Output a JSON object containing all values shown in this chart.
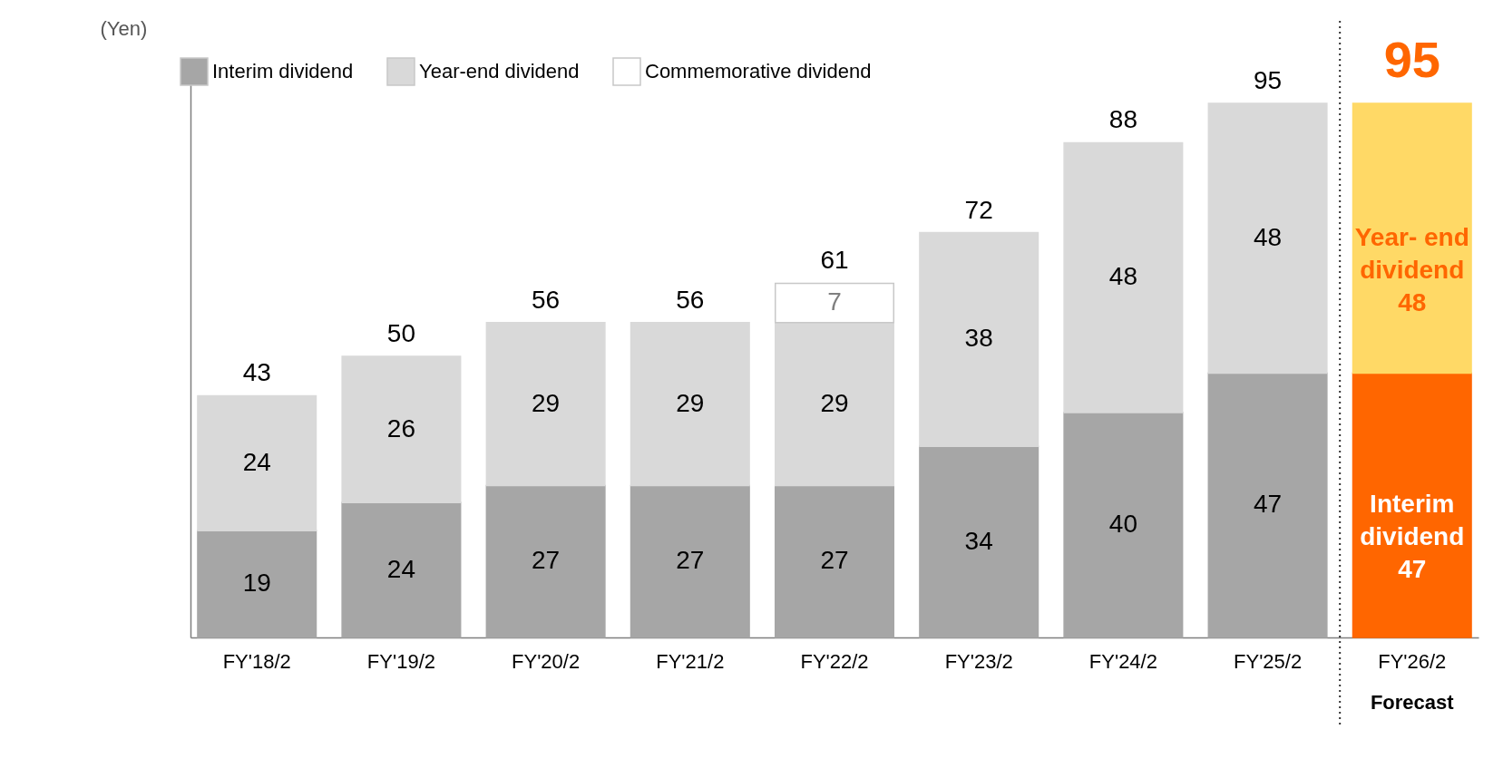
{
  "chart_data": {
    "type": "bar",
    "stacked": true,
    "ylabel": "(Yen)",
    "legend": "top left",
    "categories": [
      "FY'18/2",
      "FY'19/2",
      "FY'20/2",
      "FY'21/2",
      "FY'22/2",
      "FY'23/2",
      "FY'24/2",
      "FY'25/2",
      "FY'26/2"
    ],
    "series": [
      {
        "name": "Interim dividend",
        "color": "#a6a6a6",
        "colors": [
          "#a6a6a6",
          "#a6a6a6",
          "#a6a6a6",
          "#a6a6a6",
          "#a6a6a6",
          "#a6a6a6",
          "#a6a6a6",
          "#a6a6a6",
          "#ff6600"
        ],
        "values": [
          19,
          24,
          27,
          27,
          27,
          34,
          40,
          47,
          47
        ],
        "value_labels": [
          "19",
          "24",
          "27",
          "27",
          "27",
          "34",
          "40",
          "47",
          "Interim dividend 47"
        ]
      },
      {
        "name": "Year-end dividend",
        "color": "#d9d9d9",
        "colors": [
          "#d9d9d9",
          "#d9d9d9",
          "#d9d9d9",
          "#d9d9d9",
          "#d9d9d9",
          "#d9d9d9",
          "#d9d9d9",
          "#d9d9d9",
          "#ffd966"
        ],
        "values": [
          24,
          26,
          29,
          29,
          29,
          38,
          48,
          48,
          48
        ],
        "value_labels": [
          "24",
          "26",
          "29",
          "29",
          "29",
          "38",
          "48",
          "48",
          "Year- end dividend 48"
        ]
      },
      {
        "name": "Commemorative dividend",
        "color": "#ffffff",
        "values": [
          null,
          null,
          null,
          null,
          7,
          null,
          null,
          null,
          null
        ],
        "value_labels": [
          null,
          null,
          null,
          null,
          "7",
          null,
          null,
          null,
          null
        ]
      }
    ],
    "totals": [
      "43",
      "50",
      "56",
      "56",
      "61",
      "72",
      "88",
      "95",
      "95"
    ],
    "annotations": [
      "Forecast"
    ]
  }
}
